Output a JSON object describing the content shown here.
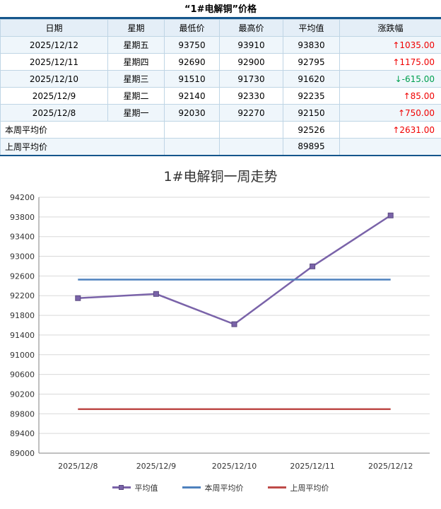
{
  "page_title": "“1#电解铜”价格",
  "table": {
    "headers": [
      "日期",
      "星期",
      "最低价",
      "最高价",
      "平均值",
      "涨跌幅"
    ],
    "rows": [
      {
        "date": "2025/12/12",
        "weekday": "星期五",
        "low": "93750",
        "high": "93910",
        "avg": "93830",
        "change": "↑1035.00",
        "dir": "up"
      },
      {
        "date": "2025/12/11",
        "weekday": "星期四",
        "low": "92690",
        "high": "92900",
        "avg": "92795",
        "change": "↑1175.00",
        "dir": "up"
      },
      {
        "date": "2025/12/10",
        "weekday": "星期三",
        "low": "91510",
        "high": "91730",
        "avg": "91620",
        "change": "↓-615.00",
        "dir": "down"
      },
      {
        "date": "2025/12/9",
        "weekday": "星期二",
        "low": "92140",
        "high": "92330",
        "avg": "92235",
        "change": "↑85.00",
        "dir": "up"
      },
      {
        "date": "2025/12/8",
        "weekday": "星期一",
        "low": "92030",
        "high": "92270",
        "avg": "92150",
        "change": "↑750.00",
        "dir": "up"
      }
    ],
    "summary_rows": [
      {
        "label": "本周平均价",
        "avg": "92526",
        "change": "↑2631.00",
        "dir": "up"
      },
      {
        "label": "上周平均价",
        "avg": "89895",
        "change": "",
        "dir": ""
      }
    ]
  },
  "chart_data": {
    "type": "line",
    "title": "1#电解铜一周走势",
    "x": [
      "2025/12/8",
      "2025/12/9",
      "2025/12/10",
      "2025/12/11",
      "2025/12/12"
    ],
    "series": [
      {
        "name": "平均值",
        "values": [
          92150,
          92235,
          91620,
          92795,
          93830
        ],
        "color": "#7A63A9",
        "marker": "square"
      },
      {
        "name": "本周平均价",
        "values": [
          92526,
          92526,
          92526,
          92526,
          92526
        ],
        "color": "#4E81BD",
        "marker": "none"
      },
      {
        "name": "上周平均价",
        "values": [
          89895,
          89895,
          89895,
          89895,
          89895
        ],
        "color": "#BE4B48",
        "marker": "none"
      }
    ],
    "ylim": [
      89000,
      94200
    ],
    "ytick_step": 400,
    "grid": true,
    "legend_position": "bottom"
  },
  "colors": {
    "up": "#F00000",
    "down": "#00A050",
    "header_line": "#15568C",
    "grid": "#D9D9D9",
    "axis": "#808080"
  }
}
